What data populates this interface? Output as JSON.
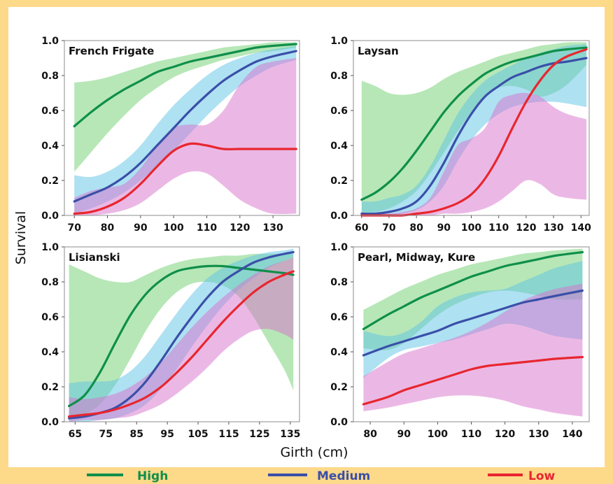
{
  "figure": {
    "ylabel": "Survival",
    "xlabel": "Girth (cm)"
  },
  "legend": [
    {
      "name": "High",
      "color": "#0f8f4a"
    },
    {
      "name": "Medium",
      "color": "#3a4fa8"
    },
    {
      "name": "Low",
      "color": "#e8262f"
    }
  ],
  "colors": {
    "High": "#0f8f4a",
    "Medium": "#3a4fa8",
    "Low": "#e8262f",
    "High_band": "#6fcf6f",
    "Medium_band": "#5ec4e6",
    "Low_band": "#d872cc",
    "background": "#fdd98a"
  },
  "chart_data": [
    {
      "type": "line",
      "title": "French Frigate",
      "xlim": [
        67,
        138
      ],
      "ylim": [
        0,
        1
      ],
      "xticks": [
        70,
        80,
        90,
        100,
        110,
        120,
        130
      ],
      "yticks": [
        0.0,
        0.2,
        0.4,
        0.6,
        0.8,
        1.0
      ],
      "series": [
        {
          "name": "High",
          "x": [
            70,
            75,
            80,
            85,
            90,
            95,
            100,
            105,
            110,
            115,
            120,
            125,
            130,
            137
          ],
          "y": [
            0.51,
            0.59,
            0.66,
            0.72,
            0.77,
            0.82,
            0.85,
            0.88,
            0.9,
            0.92,
            0.94,
            0.96,
            0.97,
            0.98
          ],
          "lower": [
            0.25,
            0.36,
            0.47,
            0.57,
            0.66,
            0.73,
            0.79,
            0.83,
            0.86,
            0.89,
            0.91,
            0.93,
            0.94,
            0.96
          ],
          "upper": [
            0.76,
            0.77,
            0.79,
            0.82,
            0.85,
            0.88,
            0.9,
            0.92,
            0.94,
            0.96,
            0.97,
            0.98,
            0.99,
            0.99
          ]
        },
        {
          "name": "Medium",
          "x": [
            70,
            75,
            80,
            85,
            90,
            95,
            100,
            105,
            110,
            115,
            120,
            125,
            130,
            137
          ],
          "y": [
            0.08,
            0.12,
            0.16,
            0.22,
            0.3,
            0.4,
            0.5,
            0.6,
            0.69,
            0.77,
            0.83,
            0.88,
            0.91,
            0.94
          ],
          "lower": [
            0.01,
            0.04,
            0.08,
            0.13,
            0.2,
            0.28,
            0.37,
            0.47,
            0.57,
            0.66,
            0.74,
            0.8,
            0.85,
            0.89
          ],
          "upper": [
            0.23,
            0.22,
            0.25,
            0.31,
            0.4,
            0.52,
            0.63,
            0.72,
            0.8,
            0.86,
            0.9,
            0.93,
            0.95,
            0.97
          ]
        },
        {
          "name": "Low",
          "x": [
            70,
            75,
            80,
            85,
            90,
            95,
            100,
            105,
            110,
            115,
            120,
            125,
            130,
            137
          ],
          "y": [
            0.01,
            0.02,
            0.05,
            0.1,
            0.18,
            0.28,
            0.37,
            0.41,
            0.4,
            0.38,
            0.38,
            0.38,
            0.38,
            0.38
          ],
          "lower": [
            0.0,
            0.0,
            0.01,
            0.03,
            0.07,
            0.14,
            0.21,
            0.25,
            0.24,
            0.17,
            0.09,
            0.04,
            0.01,
            0.01
          ],
          "upper": [
            0.1,
            0.14,
            0.16,
            0.18,
            0.27,
            0.4,
            0.5,
            0.52,
            0.52,
            0.6,
            0.75,
            0.85,
            0.88,
            0.9
          ]
        }
      ]
    },
    {
      "type": "line",
      "title": "Laysan",
      "xlim": [
        57,
        143
      ],
      "ylim": [
        0,
        1
      ],
      "xticks": [
        60,
        70,
        80,
        90,
        100,
        110,
        120,
        130,
        140
      ],
      "yticks": [
        0.0,
        0.2,
        0.4,
        0.6,
        0.8,
        1.0
      ],
      "series": [
        {
          "name": "High",
          "x": [
            60,
            65,
            70,
            75,
            80,
            85,
            90,
            95,
            100,
            105,
            110,
            115,
            120,
            125,
            130,
            135,
            142
          ],
          "y": [
            0.09,
            0.13,
            0.19,
            0.27,
            0.37,
            0.48,
            0.59,
            0.68,
            0.75,
            0.81,
            0.85,
            0.88,
            0.9,
            0.92,
            0.94,
            0.95,
            0.96
          ],
          "lower": [
            0.01,
            0.02,
            0.04,
            0.08,
            0.14,
            0.24,
            0.36,
            0.48,
            0.59,
            0.68,
            0.73,
            0.74,
            0.72,
            0.68,
            0.7,
            0.75,
            0.86
          ],
          "upper": [
            0.77,
            0.74,
            0.7,
            0.69,
            0.7,
            0.73,
            0.78,
            0.82,
            0.85,
            0.88,
            0.91,
            0.93,
            0.95,
            0.97,
            0.98,
            0.99,
            0.99
          ]
        },
        {
          "name": "Medium",
          "x": [
            60,
            65,
            70,
            75,
            80,
            85,
            90,
            95,
            100,
            105,
            110,
            115,
            120,
            125,
            130,
            135,
            142
          ],
          "y": [
            0.01,
            0.01,
            0.02,
            0.04,
            0.08,
            0.17,
            0.3,
            0.45,
            0.58,
            0.68,
            0.74,
            0.79,
            0.82,
            0.85,
            0.87,
            0.88,
            0.9
          ],
          "lower": [
            0.0,
            0.0,
            0.0,
            0.01,
            0.03,
            0.08,
            0.17,
            0.31,
            0.43,
            0.52,
            0.58,
            0.62,
            0.64,
            0.65,
            0.65,
            0.64,
            0.62
          ],
          "upper": [
            0.08,
            0.08,
            0.1,
            0.12,
            0.17,
            0.28,
            0.43,
            0.58,
            0.69,
            0.77,
            0.82,
            0.86,
            0.9,
            0.93,
            0.95,
            0.97,
            0.98
          ]
        },
        {
          "name": "Low",
          "x": [
            60,
            65,
            70,
            75,
            80,
            85,
            90,
            95,
            100,
            105,
            110,
            115,
            120,
            125,
            130,
            135,
            142
          ],
          "y": [
            0.0,
            0.0,
            0.0,
            0.0,
            0.01,
            0.02,
            0.04,
            0.07,
            0.12,
            0.21,
            0.34,
            0.5,
            0.65,
            0.77,
            0.86,
            0.91,
            0.95
          ],
          "lower": [
            0.0,
            0.0,
            0.0,
            0.0,
            0.0,
            0.0,
            0.01,
            0.01,
            0.02,
            0.04,
            0.08,
            0.14,
            0.2,
            0.18,
            0.12,
            0.1,
            0.09
          ],
          "upper": [
            0.0,
            0.01,
            0.01,
            0.02,
            0.04,
            0.1,
            0.25,
            0.4,
            0.44,
            0.5,
            0.65,
            0.69,
            0.7,
            0.68,
            0.62,
            0.58,
            0.55
          ]
        }
      ]
    },
    {
      "type": "line",
      "title": "Lisianski",
      "xlim": [
        61.5,
        138
      ],
      "ylim": [
        0,
        1
      ],
      "xticks": [
        65,
        75,
        85,
        95,
        105,
        115,
        125,
        135
      ],
      "yticks": [
        0.0,
        0.2,
        0.4,
        0.6,
        0.8,
        1.0
      ],
      "series": [
        {
          "name": "High",
          "x": [
            63,
            68,
            73,
            78,
            83,
            88,
            93,
            98,
            103,
            108,
            113,
            118,
            123,
            128,
            133,
            136
          ],
          "y": [
            0.09,
            0.15,
            0.28,
            0.45,
            0.61,
            0.73,
            0.81,
            0.86,
            0.88,
            0.89,
            0.89,
            0.88,
            0.87,
            0.86,
            0.85,
            0.84
          ],
          "lower": [
            0.01,
            0.04,
            0.1,
            0.21,
            0.36,
            0.52,
            0.65,
            0.74,
            0.79,
            0.8,
            0.78,
            0.72,
            0.6,
            0.45,
            0.3,
            0.18
          ],
          "upper": [
            0.9,
            0.86,
            0.82,
            0.8,
            0.8,
            0.84,
            0.88,
            0.91,
            0.93,
            0.94,
            0.95,
            0.95,
            0.96,
            0.96,
            0.96,
            0.96
          ]
        },
        {
          "name": "Medium",
          "x": [
            63,
            68,
            73,
            78,
            83,
            88,
            93,
            98,
            103,
            108,
            113,
            118,
            123,
            128,
            133,
            136
          ],
          "y": [
            0.02,
            0.03,
            0.05,
            0.08,
            0.14,
            0.23,
            0.35,
            0.48,
            0.6,
            0.71,
            0.8,
            0.86,
            0.91,
            0.94,
            0.96,
            0.97
          ],
          "lower": [
            0.0,
            0.0,
            0.01,
            0.02,
            0.05,
            0.1,
            0.19,
            0.3,
            0.43,
            0.55,
            0.66,
            0.75,
            0.82,
            0.88,
            0.92,
            0.94
          ],
          "upper": [
            0.22,
            0.23,
            0.23,
            0.24,
            0.29,
            0.38,
            0.5,
            0.62,
            0.73,
            0.82,
            0.88,
            0.92,
            0.95,
            0.97,
            0.98,
            0.99
          ]
        },
        {
          "name": "Low",
          "x": [
            63,
            68,
            73,
            78,
            83,
            88,
            93,
            98,
            103,
            108,
            113,
            118,
            123,
            128,
            133,
            136
          ],
          "y": [
            0.03,
            0.04,
            0.05,
            0.07,
            0.1,
            0.14,
            0.2,
            0.28,
            0.37,
            0.47,
            0.57,
            0.66,
            0.74,
            0.8,
            0.84,
            0.86
          ],
          "lower": [
            0.0,
            0.01,
            0.01,
            0.02,
            0.03,
            0.06,
            0.1,
            0.16,
            0.23,
            0.31,
            0.4,
            0.47,
            0.52,
            0.53,
            0.5,
            0.47
          ],
          "upper": [
            0.14,
            0.13,
            0.14,
            0.16,
            0.2,
            0.26,
            0.34,
            0.44,
            0.54,
            0.63,
            0.71,
            0.78,
            0.84,
            0.89,
            0.92,
            0.94
          ]
        }
      ]
    },
    {
      "type": "line",
      "title": "Pearl, Midway, Kure",
      "xlim": [
        75,
        145
      ],
      "ylim": [
        0,
        1
      ],
      "xticks": [
        80,
        90,
        100,
        110,
        120,
        130,
        140
      ],
      "yticks": [
        0.0,
        0.2,
        0.4,
        0.6,
        0.8,
        1.0
      ],
      "series": [
        {
          "name": "High",
          "x": [
            78,
            85,
            90,
            95,
            100,
            105,
            110,
            115,
            120,
            125,
            130,
            135,
            143
          ],
          "y": [
            0.53,
            0.61,
            0.66,
            0.71,
            0.75,
            0.79,
            0.83,
            0.86,
            0.89,
            0.91,
            0.93,
            0.95,
            0.97
          ],
          "lower": [
            0.42,
            0.41,
            0.45,
            0.53,
            0.61,
            0.67,
            0.71,
            0.74,
            0.75,
            0.74,
            0.72,
            0.7,
            0.7
          ],
          "upper": [
            0.64,
            0.71,
            0.76,
            0.8,
            0.84,
            0.87,
            0.9,
            0.92,
            0.94,
            0.96,
            0.97,
            0.98,
            0.99
          ]
        },
        {
          "name": "Medium",
          "x": [
            78,
            85,
            90,
            95,
            100,
            105,
            110,
            115,
            120,
            125,
            130,
            135,
            143
          ],
          "y": [
            0.38,
            0.43,
            0.46,
            0.49,
            0.52,
            0.56,
            0.59,
            0.62,
            0.65,
            0.68,
            0.7,
            0.72,
            0.75
          ],
          "lower": [
            0.25,
            0.36,
            0.41,
            0.43,
            0.45,
            0.47,
            0.5,
            0.53,
            0.56,
            0.55,
            0.52,
            0.49,
            0.47
          ],
          "upper": [
            0.52,
            0.49,
            0.51,
            0.57,
            0.66,
            0.71,
            0.74,
            0.75,
            0.76,
            0.8,
            0.84,
            0.88,
            0.92
          ]
        },
        {
          "name": "Low",
          "x": [
            78,
            85,
            90,
            95,
            100,
            105,
            110,
            115,
            120,
            125,
            130,
            135,
            143
          ],
          "y": [
            0.1,
            0.14,
            0.18,
            0.21,
            0.24,
            0.27,
            0.3,
            0.32,
            0.33,
            0.34,
            0.35,
            0.36,
            0.37
          ],
          "lower": [
            0.06,
            0.08,
            0.1,
            0.12,
            0.14,
            0.15,
            0.15,
            0.14,
            0.12,
            0.09,
            0.07,
            0.05,
            0.03
          ],
          "upper": [
            0.26,
            0.34,
            0.39,
            0.42,
            0.45,
            0.48,
            0.52,
            0.57,
            0.63,
            0.69,
            0.73,
            0.76,
            0.79
          ]
        }
      ]
    }
  ]
}
